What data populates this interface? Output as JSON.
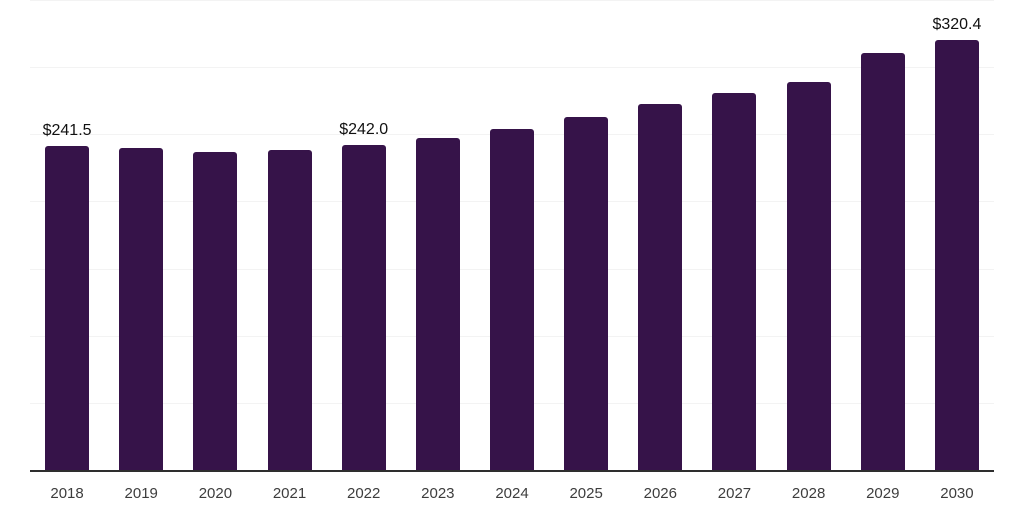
{
  "chart_data": {
    "type": "bar",
    "title": "",
    "xlabel": "",
    "ylabel": "",
    "categories": [
      "2018",
      "2019",
      "2020",
      "2021",
      "2022",
      "2023",
      "2024",
      "2025",
      "2026",
      "2027",
      "2028",
      "2029",
      "2030"
    ],
    "values": [
      241.5,
      239.5,
      236.5,
      238.0,
      242.0,
      247.0,
      254.0,
      263.0,
      272.5,
      281.0,
      289.0,
      310.5,
      320.4
    ],
    "data_labels": [
      "$241.5",
      null,
      null,
      null,
      "$242.0",
      null,
      null,
      null,
      null,
      null,
      null,
      null,
      "$320.4"
    ],
    "ylim": [
      0,
      350
    ],
    "gridline_interval": 50,
    "grid": "horizontal gridlines only, no y-axis tick labels",
    "legend": "none",
    "colors": {
      "bar_fill": "#361349",
      "axis_line": "#2e2e2e",
      "gridline": "#f3f3f3",
      "tick_label": "#3d3d3d",
      "data_label": "#111111",
      "background": "#ffffff"
    }
  }
}
